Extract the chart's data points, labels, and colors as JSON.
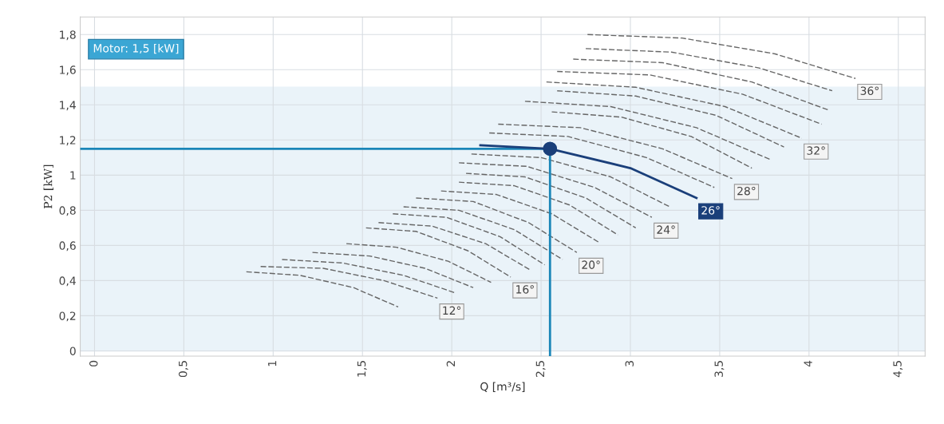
{
  "chart_data": {
    "type": "line",
    "xlabel": "Q [m³/s]",
    "ylabel": "P2 [kW]",
    "xlim": [
      -0.08,
      4.65
    ],
    "ylim": [
      -0.03,
      1.9
    ],
    "xticks": [
      {
        "value": 0,
        "label": "0"
      },
      {
        "value": 0.5,
        "label": "0,5"
      },
      {
        "value": 1,
        "label": "1"
      },
      {
        "value": 1.5,
        "label": "1,5"
      },
      {
        "value": 2,
        "label": "2"
      },
      {
        "value": 2.5,
        "label": "2,5"
      },
      {
        "value": 3,
        "label": "3"
      },
      {
        "value": 3.5,
        "label": "3,5"
      },
      {
        "value": 4,
        "label": "4"
      },
      {
        "value": 4.5,
        "label": "4,5"
      }
    ],
    "yticks": [
      {
        "value": 0,
        "label": "0"
      },
      {
        "value": 0.2,
        "label": "0,2"
      },
      {
        "value": 0.4,
        "label": "0,4"
      },
      {
        "value": 0.6,
        "label": "0,6"
      },
      {
        "value": 0.8,
        "label": "0,8"
      },
      {
        "value": 1,
        "label": "1"
      },
      {
        "value": 1.2,
        "label": "1,2"
      },
      {
        "value": 1.4,
        "label": "1,4"
      },
      {
        "value": 1.6,
        "label": "1,6"
      },
      {
        "value": 1.8,
        "label": "1,8"
      }
    ],
    "grid": true,
    "legend": false,
    "bands": [
      {
        "axis": "y",
        "from": 0,
        "to": 1.5,
        "label": "Motor: 1,5 [kW]",
        "color": "#eaf3f9"
      }
    ],
    "ref_lines": [
      {
        "axis": "y",
        "value": 1.15,
        "color": "#1b86b8"
      },
      {
        "axis": "x",
        "value": 2.55,
        "color": "#1b86b8"
      }
    ],
    "series": [
      {
        "color": "#666666",
        "line_style": "dashed",
        "x": [
          0.85,
          1.15,
          1.45,
          1.7
        ],
        "values": [
          0.45,
          0.43,
          0.36,
          0.25
        ]
      },
      {
        "name": "12°",
        "color": "#666666",
        "line_style": "dashed",
        "x": [
          0.93,
          1.28,
          1.62,
          1.92
        ],
        "values": [
          0.48,
          0.47,
          0.4,
          0.3
        ]
      },
      {
        "color": "#666666",
        "line_style": "dashed",
        "x": [
          1.05,
          1.39,
          1.73,
          2.02
        ],
        "values": [
          0.52,
          0.5,
          0.43,
          0.33
        ]
      },
      {
        "color": "#666666",
        "line_style": "dashed",
        "x": [
          1.22,
          1.54,
          1.85,
          2.12
        ],
        "values": [
          0.56,
          0.54,
          0.47,
          0.36
        ]
      },
      {
        "color": "#666666",
        "line_style": "dashed",
        "x": [
          1.41,
          1.69,
          1.98,
          2.22
        ],
        "values": [
          0.61,
          0.59,
          0.51,
          0.39
        ]
      },
      {
        "name": "16°",
        "color": "#666666",
        "line_style": "dashed",
        "x": [
          1.52,
          1.8,
          2.09,
          2.33
        ],
        "values": [
          0.7,
          0.68,
          0.57,
          0.42
        ]
      },
      {
        "color": "#666666",
        "line_style": "dashed",
        "x": [
          1.59,
          1.89,
          2.19,
          2.44
        ],
        "values": [
          0.73,
          0.71,
          0.61,
          0.46
        ]
      },
      {
        "color": "#666666",
        "line_style": "dashed",
        "x": [
          1.67,
          1.97,
          2.27,
          2.52
        ],
        "values": [
          0.78,
          0.76,
          0.65,
          0.49
        ]
      },
      {
        "color": "#666666",
        "line_style": "dashed",
        "x": [
          1.73,
          2.04,
          2.35,
          2.62
        ],
        "values": [
          0.82,
          0.8,
          0.69,
          0.52
        ]
      },
      {
        "name": "20°",
        "color": "#666666",
        "line_style": "dashed",
        "x": [
          1.8,
          2.12,
          2.43,
          2.7
        ],
        "values": [
          0.87,
          0.85,
          0.73,
          0.56
        ]
      },
      {
        "color": "#666666",
        "line_style": "dashed",
        "x": [
          1.94,
          2.25,
          2.56,
          2.82
        ],
        "values": [
          0.91,
          0.89,
          0.78,
          0.62
        ]
      },
      {
        "color": "#666666",
        "line_style": "dashed",
        "x": [
          2.04,
          2.35,
          2.66,
          2.93
        ],
        "values": [
          0.96,
          0.94,
          0.83,
          0.66
        ]
      },
      {
        "color": "#666666",
        "line_style": "dashed",
        "x": [
          2.08,
          2.41,
          2.75,
          3.03
        ],
        "values": [
          1.01,
          0.99,
          0.87,
          0.7
        ]
      },
      {
        "name": "24°",
        "color": "#666666",
        "line_style": "dashed",
        "x": [
          2.04,
          2.42,
          2.8,
          3.12
        ],
        "values": [
          1.07,
          1.05,
          0.93,
          0.76
        ]
      },
      {
        "color": "#666666",
        "line_style": "dashed",
        "x": [
          2.11,
          2.5,
          2.89,
          3.22
        ],
        "values": [
          1.12,
          1.1,
          0.99,
          0.82
        ]
      },
      {
        "name": "26°",
        "color": "#1a3f7a",
        "line_style": "solid",
        "x": [
          2.16,
          2.55,
          3.0,
          3.37
        ],
        "values": [
          1.17,
          1.15,
          1.04,
          0.87
        ]
      },
      {
        "color": "#666666",
        "line_style": "dashed",
        "x": [
          2.21,
          2.65,
          3.09,
          3.47
        ],
        "values": [
          1.24,
          1.22,
          1.1,
          0.93
        ]
      },
      {
        "name": "28°",
        "color": "#666666",
        "line_style": "dashed",
        "x": [
          2.26,
          2.72,
          3.18,
          3.57
        ],
        "values": [
          1.29,
          1.27,
          1.15,
          0.98
        ]
      },
      {
        "color": "#666666",
        "line_style": "dashed",
        "x": [
          2.56,
          2.95,
          3.34,
          3.68
        ],
        "values": [
          1.36,
          1.33,
          1.22,
          1.04
        ]
      },
      {
        "color": "#666666",
        "line_style": "dashed",
        "x": [
          2.41,
          2.89,
          3.37,
          3.78
        ],
        "values": [
          1.42,
          1.39,
          1.27,
          1.09
        ]
      },
      {
        "color": "#666666",
        "line_style": "dashed",
        "x": [
          2.59,
          3.03,
          3.48,
          3.86
        ],
        "values": [
          1.48,
          1.45,
          1.34,
          1.16
        ]
      },
      {
        "name": "32°",
        "color": "#666666",
        "line_style": "dashed",
        "x": [
          2.53,
          3.03,
          3.53,
          3.96
        ],
        "values": [
          1.53,
          1.5,
          1.39,
          1.21
        ]
      },
      {
        "color": "#666666",
        "line_style": "dashed",
        "x": [
          2.59,
          3.11,
          3.63,
          4.07
        ],
        "values": [
          1.59,
          1.57,
          1.46,
          1.29
        ]
      },
      {
        "color": "#666666",
        "line_style": "dashed",
        "x": [
          2.68,
          3.18,
          3.68,
          4.11
        ],
        "values": [
          1.66,
          1.64,
          1.53,
          1.37
        ]
      },
      {
        "color": "#666666",
        "line_style": "dashed",
        "x": [
          2.75,
          3.23,
          3.72,
          4.13
        ],
        "values": [
          1.72,
          1.7,
          1.61,
          1.48
        ]
      },
      {
        "name": "36°",
        "color": "#666666",
        "line_style": "dashed",
        "x": [
          2.76,
          3.29,
          3.81,
          4.26
        ],
        "values": [
          1.8,
          1.78,
          1.69,
          1.55
        ]
      },
      {
        "type": "scatter",
        "marker": "circle",
        "color": "#1a3f7a",
        "x": [
          2.55
        ],
        "values": [
          1.15
        ]
      }
    ]
  }
}
